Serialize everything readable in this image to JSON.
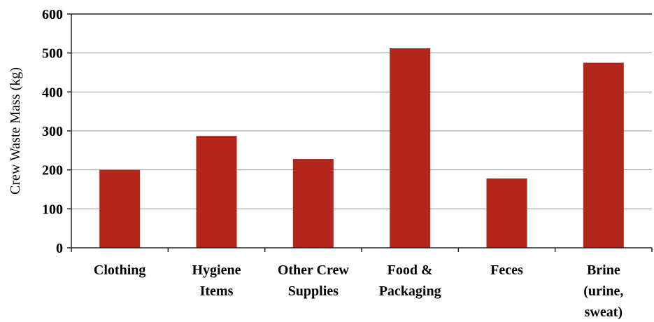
{
  "chart_data": {
    "type": "bar",
    "categories": [
      [
        "Clothing"
      ],
      [
        "Hygiene",
        "Items"
      ],
      [
        "Other Crew",
        "Supplies"
      ],
      [
        "Food &",
        "Packaging"
      ],
      [
        "Feces"
      ],
      [
        "Brine",
        "(urine,",
        "sweat)"
      ]
    ],
    "values": [
      200,
      287,
      228,
      512,
      178,
      475
    ],
    "ylabel": "Crew Waste Mass (kg)",
    "ylim": [
      0,
      600
    ],
    "yticks": [
      0,
      100,
      200,
      300,
      400,
      500,
      600
    ],
    "grid": true,
    "bar_color": "#b2261b"
  }
}
